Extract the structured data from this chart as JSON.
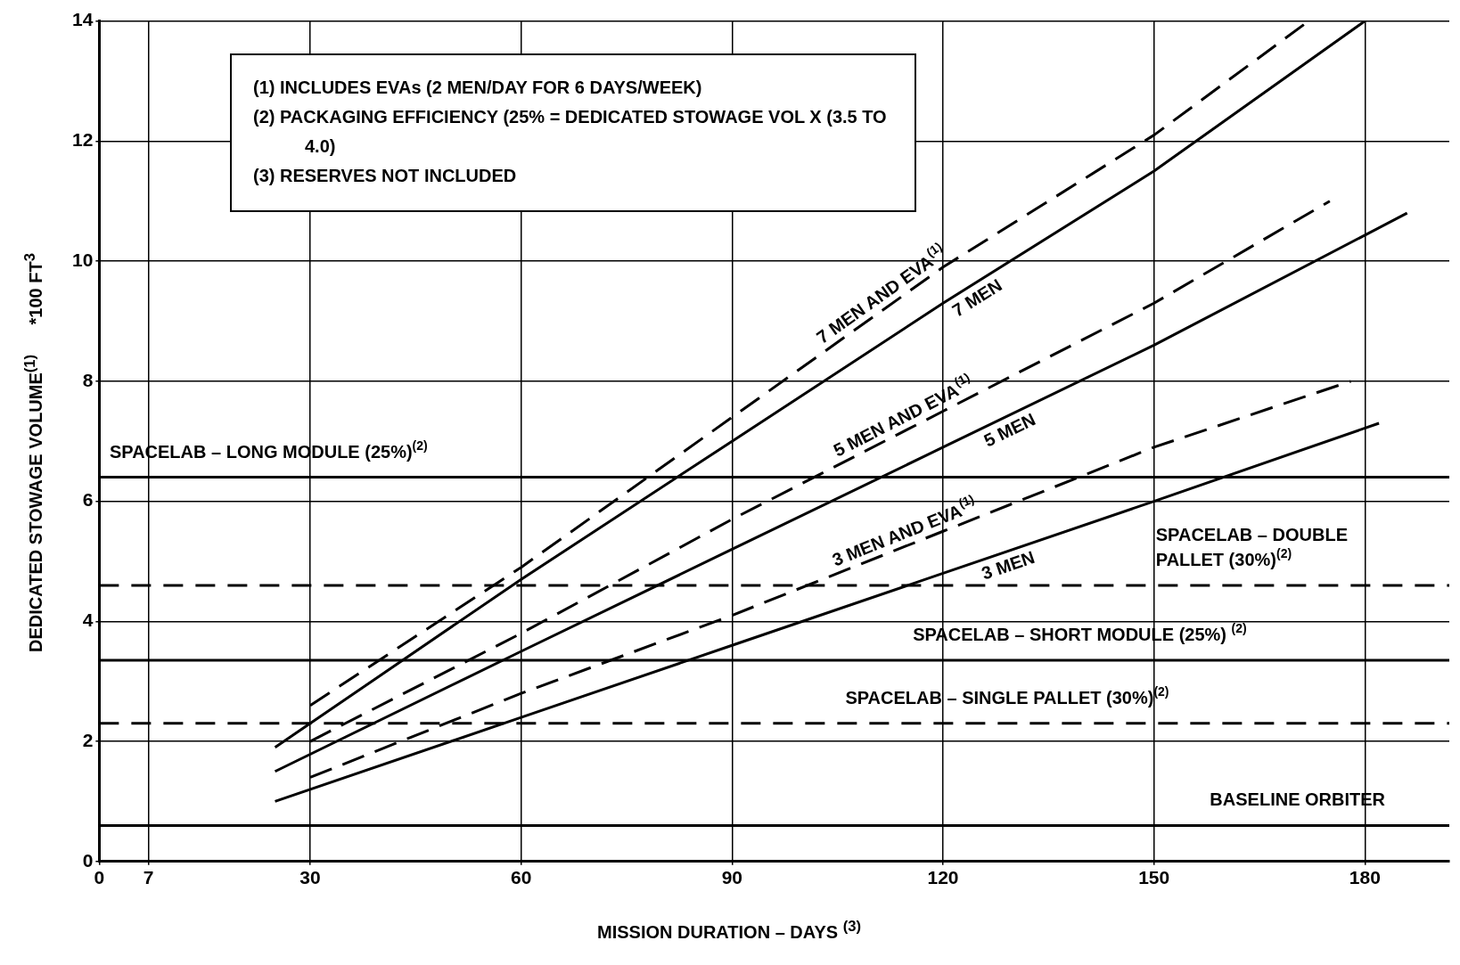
{
  "chart_data": {
    "type": "line",
    "xlabel": "MISSION DURATION – DAYS $^{(3)}$",
    "ylabel": "DEDICATED STOWAGE VOLUME$^{(1)}$      *100 FT$^{3}$",
    "annotations": [
      "(1) INCLUDES EVAs (2 MEN/DAY FOR 6 DAYS/WEEK)",
      "(2) PACKAGING EFFICIENCY (25% = DEDICATED STOWAGE VOL X (3.5 TO 4.0)",
      "(3) RESERVES NOT INCLUDED"
    ],
    "series": [
      {
        "name": "7 MEN AND EVA$^{(1)}$",
        "color": "#000000",
        "line_style": "dashed",
        "x": [
          30,
          60,
          90,
          120,
          150,
          172
        ],
        "values": [
          2.6,
          4.9,
          7.4,
          9.9,
          12.1,
          14
        ]
      },
      {
        "name": "7 MEN",
        "color": "#000000",
        "line_style": "solid",
        "x": [
          25,
          60,
          90,
          120,
          150,
          180
        ],
        "values": [
          1.9,
          4.7,
          7.0,
          9.3,
          11.5,
          14
        ]
      },
      {
        "name": "5 MEN AND EVA$^{(1)}$",
        "color": "#000000",
        "line_style": "dashed",
        "x": [
          30,
          60,
          90,
          120,
          150,
          175
        ],
        "values": [
          2.0,
          3.8,
          5.7,
          7.5,
          9.3,
          11.0
        ]
      },
      {
        "name": "5 MEN",
        "color": "#000000",
        "line_style": "solid",
        "x": [
          25,
          60,
          90,
          120,
          150,
          186
        ],
        "values": [
          1.5,
          3.5,
          5.2,
          6.9,
          8.6,
          10.8
        ]
      },
      {
        "name": "3 MEN AND EVA$^{(1)}$",
        "color": "#000000",
        "line_style": "dashed",
        "x": [
          30,
          60,
          90,
          120,
          150,
          178
        ],
        "values": [
          1.4,
          2.8,
          4.1,
          5.5,
          6.9,
          8.0
        ]
      },
      {
        "name": "3 MEN",
        "color": "#000000",
        "line_style": "solid",
        "x": [
          25,
          60,
          90,
          120,
          150,
          182
        ],
        "values": [
          1.0,
          2.4,
          3.6,
          4.8,
          6.0,
          7.3
        ]
      }
    ],
    "ref_lines": [
      {
        "axis": "y",
        "value": 6.4,
        "label": "SPACELAB – LONG MODULE (25%)$^{(2)}$",
        "color": "#000000",
        "line_style": "solid"
      },
      {
        "axis": "y",
        "value": 4.6,
        "label": "SPACELAB – DOUBLE PALLET (30%)$^{(2)}$",
        "color": "#000000",
        "line_style": "dashed"
      },
      {
        "axis": "y",
        "value": 3.35,
        "label": "SPACELAB – SHORT MODULE (25%) $^{(2)}$",
        "color": "#000000",
        "line_style": "solid"
      },
      {
        "axis": "y",
        "value": 2.3,
        "label": "SPACELAB – SINGLE PALLET (30%)$^{(2)}$",
        "color": "#000000",
        "line_style": "dashed"
      },
      {
        "axis": "y",
        "value": 0.6,
        "label": "BASELINE ORBITER",
        "color": "#000000",
        "line_style": "solid"
      }
    ],
    "xlim": [
      0,
      192
    ],
    "xticks": [
      0,
      7,
      30,
      60,
      90,
      120,
      150,
      180
    ],
    "ylim": [
      0,
      14
    ],
    "yticks": [
      0,
      2,
      4,
      6,
      8,
      10,
      12,
      14
    ],
    "grid": true,
    "legend": false,
    "marker": "none"
  }
}
